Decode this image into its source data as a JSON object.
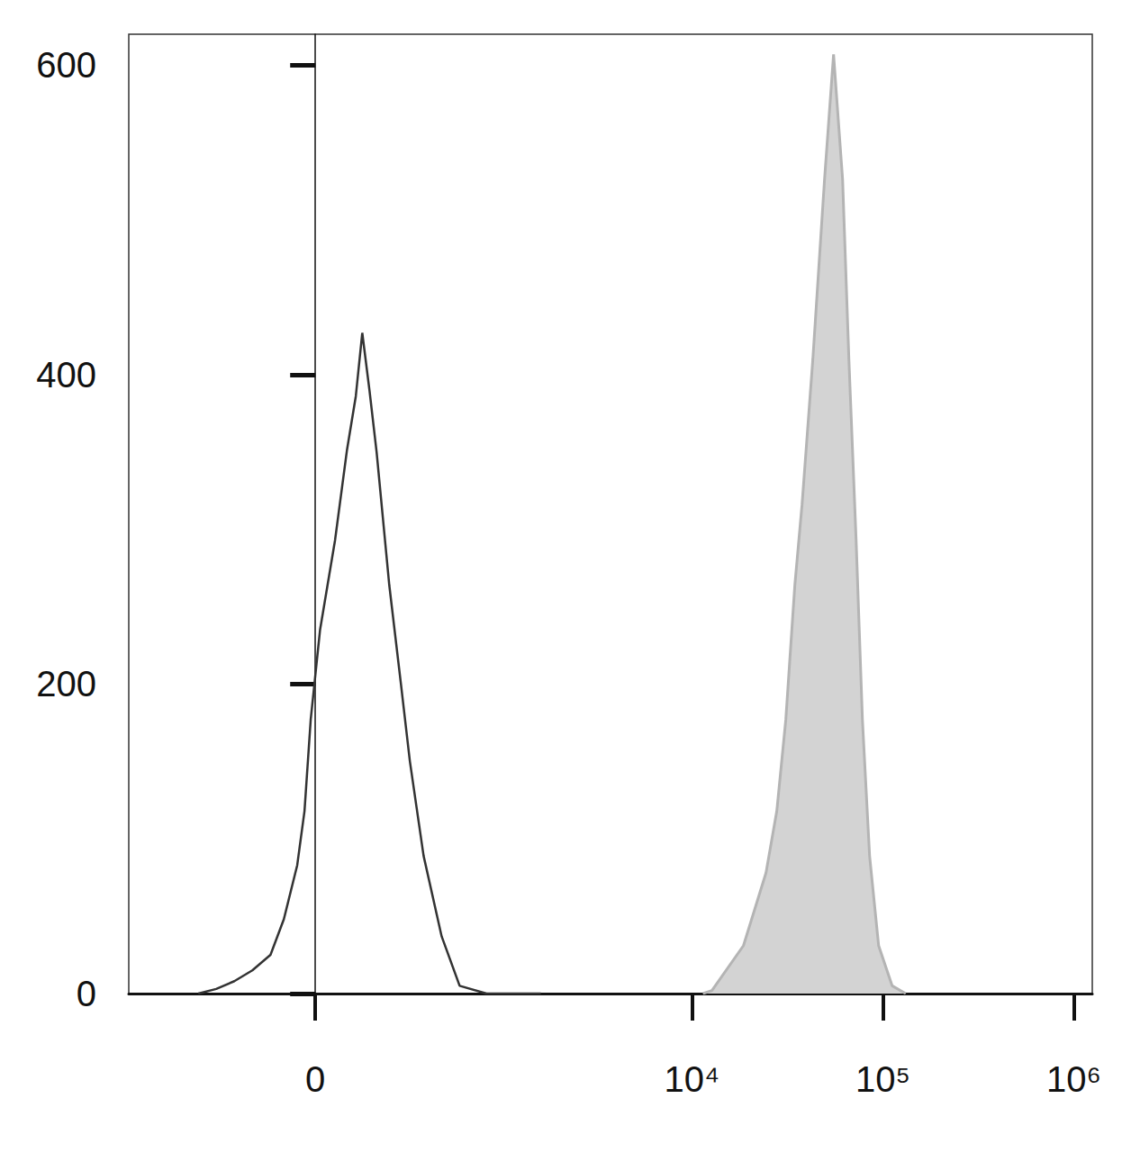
{
  "chart_data": {
    "type": "line",
    "xlim": [
      -1000,
      1250000
    ],
    "xticks": [
      0,
      {
        "value": 10000,
        "label": "10⁴"
      },
      {
        "value": 100000,
        "label": "10⁵"
      },
      {
        "value": 1000000,
        "label": "10⁶"
      }
    ],
    "ylim": [
      0,
      620
    ],
    "yticks": [
      0,
      200,
      400,
      600
    ],
    "grid": false,
    "series": [
      {
        "color": "#b4b4b4",
        "type": "area",
        "x": [
          11410,
          12720,
          18610,
          24420,
          27820,
          31010,
          34580,
          37720,
          42970,
          49470,
          55170,
          61530,
          66380,
          72420,
          78140,
          85210,
          95000,
          111900,
          131700
        ],
        "values": [
          0,
          2,
          31,
          78,
          118,
          177,
          264,
          316,
          410,
          526,
          607,
          526,
          410,
          293,
          177,
          89,
          31,
          5,
          0
        ]
      },
      {
        "color": "#333333",
        "type": "line",
        "x": [
          -411,
          -320,
          -243,
          -178,
          -121,
          -83,
          -47,
          -28,
          -12,
          12,
          51,
          83,
          108,
          127,
          149,
          172,
          216,
          261,
          299,
          364,
          465,
          588,
          826,
          1608
        ],
        "values": [
          0,
          3,
          8,
          15,
          25,
          48,
          83,
          118,
          177,
          235,
          293,
          351,
          386,
          427,
          390,
          350,
          264,
          200,
          150,
          89,
          37,
          5,
          0,
          0
        ]
      }
    ]
  }
}
